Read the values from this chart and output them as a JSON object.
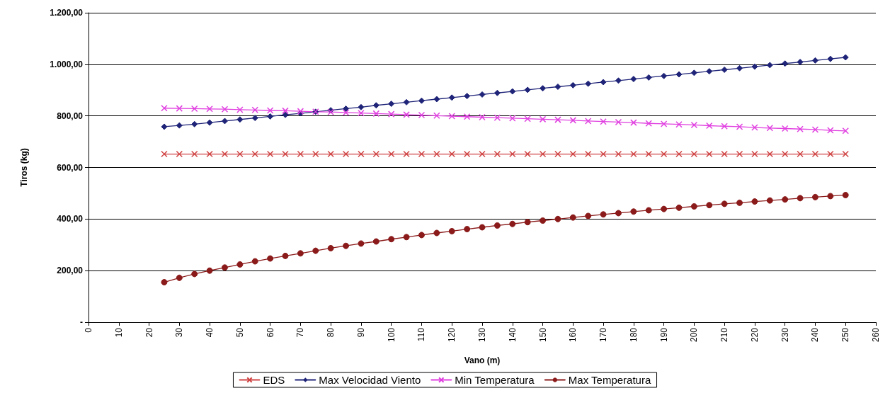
{
  "chart_data": {
    "type": "line",
    "xlabel": "Vano (m)",
    "ylabel": "Tiros (kg)",
    "x": [
      25,
      30,
      35,
      40,
      45,
      50,
      55,
      60,
      65,
      70,
      75,
      80,
      85,
      90,
      95,
      100,
      105,
      110,
      115,
      120,
      125,
      130,
      135,
      140,
      145,
      150,
      155,
      160,
      165,
      170,
      175,
      180,
      185,
      190,
      195,
      200,
      205,
      210,
      215,
      220,
      225,
      230,
      235,
      240,
      245,
      250
    ],
    "series": [
      {
        "name": "EDS",
        "color": "#d04545",
        "marker": "cross",
        "values": [
          652,
          652,
          652,
          652,
          652,
          652,
          652,
          652,
          652,
          652,
          652,
          652,
          652,
          652,
          652,
          652,
          652,
          652,
          652,
          652,
          652,
          652,
          652,
          652,
          652,
          652,
          652,
          652,
          652,
          652,
          652,
          652,
          652,
          652,
          652,
          652,
          652,
          652,
          652,
          652,
          652,
          652,
          652,
          652,
          652,
          652
        ]
      },
      {
        "name": "Max Velocidad Viento",
        "color": "#1f2478",
        "marker": "diamond",
        "values": [
          758,
          763,
          768,
          774,
          780,
          786,
          792,
          798,
          804,
          810,
          816,
          822,
          828,
          834,
          841,
          847,
          853,
          859,
          865,
          871,
          877,
          883,
          889,
          895,
          901,
          907,
          913,
          919,
          925,
          931,
          937,
          943,
          949,
          955,
          961,
          967,
          973,
          979,
          985,
          991,
          997,
          1003,
          1009,
          1015,
          1021,
          1027
        ]
      },
      {
        "name": "Min Temperatura",
        "color": "#e040e0",
        "marker": "cross",
        "values": [
          830,
          829,
          828,
          827,
          826,
          824,
          823,
          821,
          820,
          818,
          816,
          815,
          813,
          811,
          809,
          807,
          805,
          803,
          801,
          799,
          797,
          795,
          793,
          791,
          789,
          787,
          785,
          783,
          780,
          778,
          776,
          774,
          771,
          769,
          767,
          765,
          762,
          760,
          758,
          755,
          753,
          751,
          749,
          747,
          744,
          742
        ]
      },
      {
        "name": "Max Temperatura",
        "color": "#8b1a1a",
        "marker": "circle",
        "values": [
          155,
          172,
          187,
          200,
          212,
          224,
          236,
          247,
          257,
          267,
          277,
          287,
          296,
          305,
          313,
          322,
          330,
          338,
          346,
          353,
          361,
          368,
          375,
          381,
          388,
          394,
          400,
          406,
          412,
          418,
          423,
          429,
          434,
          439,
          444,
          449,
          454,
          459,
          463,
          468,
          472,
          476,
          481,
          485,
          489,
          493
        ]
      }
    ],
    "xlim": [
      0,
      260
    ],
    "xticks": [
      0,
      10,
      20,
      30,
      40,
      50,
      60,
      70,
      80,
      90,
      100,
      110,
      120,
      130,
      140,
      150,
      160,
      170,
      180,
      190,
      200,
      210,
      220,
      230,
      240,
      250,
      260
    ],
    "ylim": [
      0,
      1200
    ],
    "yticks": [
      {
        "value": 0,
        "label": "-"
      },
      {
        "value": 200,
        "label": "200,00"
      },
      {
        "value": 400,
        "label": "400,00"
      },
      {
        "value": 600,
        "label": "600,00"
      },
      {
        "value": 800,
        "label": "800,00"
      },
      {
        "value": 1000,
        "label": "1.000,00"
      },
      {
        "value": 1200,
        "label": "1.200,00"
      }
    ],
    "grid": "y",
    "legend": "bottom",
    "line_style": "solid"
  }
}
